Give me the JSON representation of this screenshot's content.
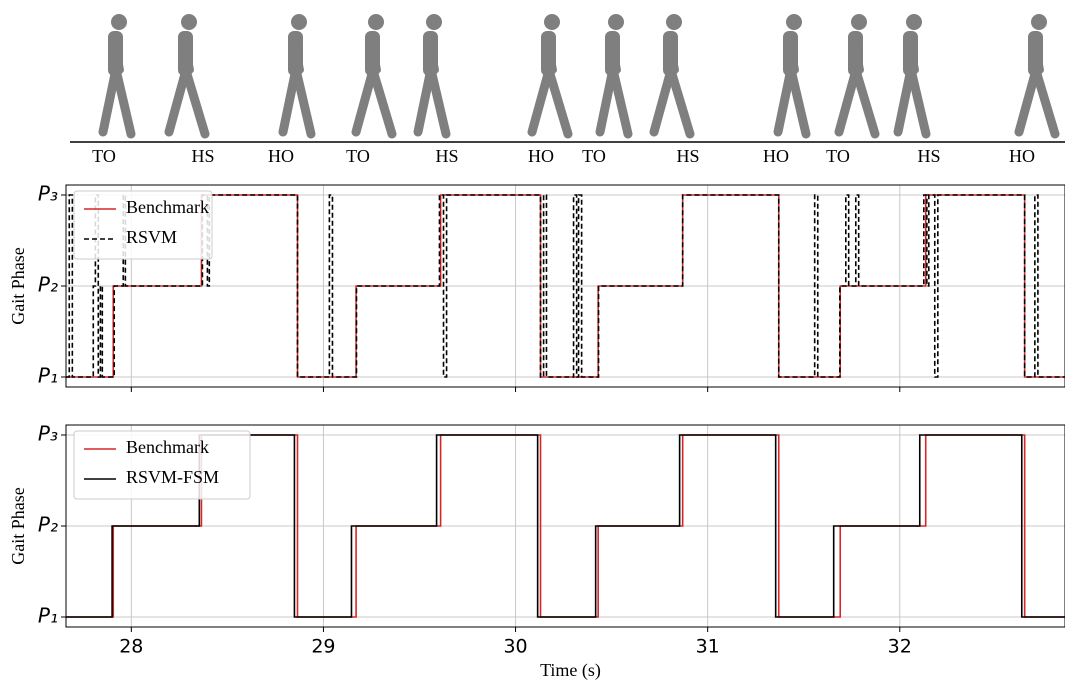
{
  "gait_events": [
    "TO",
    "HS",
    "HO",
    "TO",
    "HS",
    "HO",
    "TO",
    "HS",
    "HO",
    "TO",
    "HS",
    "HO"
  ],
  "chart_data": [
    {
      "type": "line",
      "ylabel": "Gait Phase",
      "legend": "upper left",
      "grid": true,
      "xlim": [
        27.66,
        32.86
      ],
      "xticks": [
        28,
        29,
        30,
        31,
        32
      ],
      "ylim": [
        0.89,
        3.11
      ],
      "yticks": [
        {
          "value": 1,
          "label": "P₁"
        },
        {
          "value": 2,
          "label": "P₂"
        },
        {
          "value": 3,
          "label": "P₃"
        }
      ],
      "series": [
        {
          "name": "Benchmark",
          "color": "#d62728",
          "dash": false,
          "x": [
            27.66,
            27.906,
            27.906,
            28.365,
            28.365,
            28.865,
            28.865,
            29.17,
            29.17,
            29.61,
            29.61,
            30.13,
            30.13,
            30.43,
            30.43,
            30.87,
            30.87,
            31.37,
            31.37,
            31.69,
            31.69,
            32.135,
            32.135,
            32.65,
            32.65,
            32.86
          ],
          "values": [
            1,
            1,
            2,
            2,
            3,
            3,
            1,
            1,
            2,
            2,
            3,
            3,
            1,
            1,
            2,
            2,
            3,
            3,
            1,
            1,
            2,
            2,
            3,
            3,
            1,
            1
          ]
        },
        {
          "name": "RSVM",
          "color": "#000000",
          "dash": true,
          "x": [
            27.66,
            27.677,
            27.677,
            27.693,
            27.693,
            27.802,
            27.802,
            27.813,
            27.813,
            27.828,
            27.828,
            27.839,
            27.839,
            27.849,
            27.849,
            27.911,
            27.911,
            27.958,
            27.958,
            27.969,
            27.969,
            28.37,
            28.37,
            28.396,
            28.396,
            28.406,
            28.406,
            28.865,
            28.865,
            29.031,
            29.031,
            29.047,
            29.047,
            29.172,
            29.172,
            29.604,
            29.604,
            29.625,
            29.625,
            29.641,
            29.641,
            30.13,
            30.13,
            30.146,
            30.146,
            30.161,
            30.161,
            30.302,
            30.302,
            30.318,
            30.318,
            30.328,
            30.328,
            30.344,
            30.344,
            30.432,
            30.432,
            30.87,
            30.87,
            31.37,
            31.37,
            31.557,
            31.557,
            31.573,
            31.573,
            31.688,
            31.688,
            31.719,
            31.719,
            31.734,
            31.734,
            31.771,
            31.771,
            31.786,
            31.786,
            32.125,
            32.125,
            32.141,
            32.141,
            32.151,
            32.151,
            32.182,
            32.182,
            32.198,
            32.198,
            32.65,
            32.65,
            32.703,
            32.703,
            32.719,
            32.719,
            32.86
          ],
          "values": [
            1,
            1,
            3,
            3,
            1,
            1,
            2,
            2,
            3,
            3,
            1,
            1,
            2,
            2,
            1,
            1,
            2,
            2,
            3,
            3,
            2,
            2,
            3,
            3,
            2,
            2,
            3,
            3,
            1,
            1,
            3,
            3,
            1,
            1,
            2,
            2,
            3,
            3,
            1,
            1,
            3,
            3,
            1,
            1,
            3,
            3,
            1,
            1,
            3,
            3,
            1,
            1,
            3,
            3,
            1,
            1,
            2,
            2,
            3,
            3,
            1,
            1,
            3,
            3,
            1,
            1,
            2,
            2,
            3,
            3,
            2,
            2,
            3,
            3,
            2,
            2,
            3,
            3,
            2,
            2,
            3,
            3,
            1,
            1,
            3,
            3,
            1,
            1,
            3,
            3,
            1,
            1
          ]
        }
      ]
    },
    {
      "type": "line",
      "ylabel": "Gait Phase",
      "xlabel": "Time (s)",
      "legend": "upper left",
      "grid": true,
      "xlim": [
        27.66,
        32.86
      ],
      "xticks": [
        28,
        29,
        30,
        31,
        32
      ],
      "ylim": [
        0.89,
        3.11
      ],
      "yticks": [
        {
          "value": 1,
          "label": "P₁"
        },
        {
          "value": 2,
          "label": "P₂"
        },
        {
          "value": 3,
          "label": "P₃"
        }
      ],
      "series": [
        {
          "name": "Benchmark",
          "color": "#d62728",
          "dash": false,
          "x": [
            27.66,
            27.906,
            27.906,
            28.365,
            28.365,
            28.865,
            28.865,
            29.17,
            29.17,
            29.61,
            29.61,
            30.13,
            30.13,
            30.43,
            30.43,
            30.87,
            30.87,
            31.37,
            31.37,
            31.69,
            31.69,
            32.135,
            32.135,
            32.65,
            32.65,
            32.86
          ],
          "values": [
            1,
            1,
            2,
            2,
            3,
            3,
            1,
            1,
            2,
            2,
            3,
            3,
            1,
            1,
            2,
            2,
            3,
            3,
            1,
            1,
            2,
            2,
            3,
            3,
            1,
            1
          ]
        },
        {
          "name": "RSVM-FSM",
          "color": "#000000",
          "dash": false,
          "x": [
            27.66,
            27.9,
            27.9,
            28.354,
            28.354,
            28.849,
            28.849,
            29.146,
            29.146,
            29.589,
            29.589,
            30.115,
            30.115,
            30.417,
            30.417,
            30.854,
            30.854,
            31.354,
            31.354,
            31.656,
            31.656,
            32.104,
            32.104,
            32.635,
            32.635,
            32.86
          ],
          "values": [
            1,
            1,
            2,
            2,
            3,
            3,
            1,
            1,
            2,
            2,
            3,
            3,
            1,
            1,
            2,
            2,
            3,
            3,
            1,
            1,
            2,
            2,
            3,
            3,
            1,
            1
          ]
        }
      ]
    }
  ]
}
